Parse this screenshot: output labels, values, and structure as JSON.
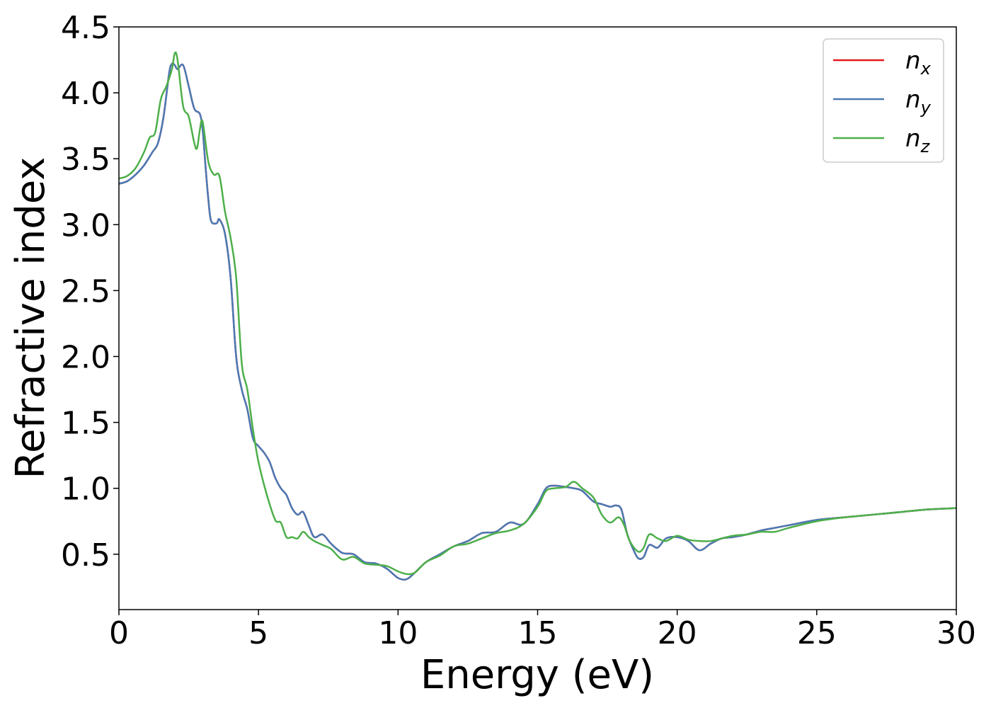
{
  "chart_data": {
    "type": "line",
    "xlabel": "Energy (eV)",
    "ylabel": "Refractive index",
    "xlim": [
      0,
      30
    ],
    "ylim": [
      0.08,
      4.5
    ],
    "xticks": [
      0,
      5,
      10,
      15,
      20,
      25,
      30
    ],
    "xtick_labels": [
      "0",
      "5",
      "10",
      "15",
      "20",
      "25",
      "30"
    ],
    "yticks": [
      0.5,
      1.0,
      1.5,
      2.0,
      2.5,
      3.0,
      3.5,
      4.0,
      4.5
    ],
    "ytick_labels": [
      "0.5",
      "1.0",
      "1.5",
      "2.0",
      "2.5",
      "3.0",
      "3.5",
      "4.0",
      "4.5"
    ],
    "grid": false,
    "legend_position": "top-right",
    "series": [
      {
        "name": "n_x",
        "legend_base": "n",
        "legend_sub": "x",
        "color": "#e41a1c",
        "x": [
          0,
          0.3,
          0.6,
          0.9,
          1.2,
          1.4,
          1.6,
          1.8,
          1.9,
          2.0,
          2.1,
          2.3,
          2.5,
          2.7,
          2.9,
          3.0,
          3.1,
          3.2,
          3.3,
          3.5,
          3.6,
          3.8,
          4.0,
          4.2,
          4.4,
          4.6,
          4.8,
          5.0,
          5.2,
          5.4,
          5.6,
          5.8,
          6.0,
          6.2,
          6.4,
          6.6,
          6.8,
          7.0,
          7.3,
          7.6,
          8.0,
          8.4,
          8.8,
          9.2,
          9.6,
          10.0,
          10.3,
          10.6,
          11.0,
          11.5,
          12.0,
          12.5,
          13.0,
          13.5,
          14.0,
          14.5,
          15.0,
          15.3,
          15.6,
          16.0,
          16.3,
          16.6,
          17.0,
          17.3,
          17.6,
          17.8,
          18.0,
          18.2,
          18.4,
          18.6,
          18.8,
          19.0,
          19.3,
          19.6,
          20.0,
          20.4,
          20.8,
          21.2,
          21.6,
          22.0,
          22.5,
          23.0,
          23.5,
          24.0,
          25.0,
          26.0,
          27.0,
          28.0,
          29.0,
          30.0
        ],
        "values": [
          3.31,
          3.33,
          3.38,
          3.45,
          3.55,
          3.62,
          3.82,
          4.15,
          4.22,
          4.21,
          4.18,
          4.21,
          4.05,
          3.88,
          3.84,
          3.72,
          3.45,
          3.2,
          3.03,
          3.01,
          3.04,
          2.93,
          2.6,
          2.0,
          1.75,
          1.6,
          1.38,
          1.32,
          1.27,
          1.2,
          1.08,
          1.0,
          0.95,
          0.85,
          0.8,
          0.82,
          0.72,
          0.63,
          0.65,
          0.58,
          0.51,
          0.5,
          0.44,
          0.43,
          0.39,
          0.32,
          0.31,
          0.36,
          0.44,
          0.5,
          0.56,
          0.6,
          0.66,
          0.67,
          0.74,
          0.73,
          0.88,
          1.0,
          1.02,
          1.01,
          1.0,
          0.98,
          0.9,
          0.88,
          0.86,
          0.87,
          0.84,
          0.66,
          0.55,
          0.47,
          0.48,
          0.57,
          0.55,
          0.62,
          0.63,
          0.6,
          0.53,
          0.58,
          0.62,
          0.63,
          0.65,
          0.68,
          0.7,
          0.72,
          0.76,
          0.78,
          0.8,
          0.82,
          0.84,
          0.85
        ]
      },
      {
        "name": "n_y",
        "legend_base": "n",
        "legend_sub": "y",
        "color": "#4a7ab5",
        "x": [
          0,
          0.3,
          0.6,
          0.9,
          1.2,
          1.4,
          1.6,
          1.8,
          1.9,
          2.0,
          2.1,
          2.3,
          2.5,
          2.7,
          2.9,
          3.0,
          3.1,
          3.2,
          3.3,
          3.5,
          3.6,
          3.8,
          4.0,
          4.2,
          4.4,
          4.6,
          4.8,
          5.0,
          5.2,
          5.4,
          5.6,
          5.8,
          6.0,
          6.2,
          6.4,
          6.6,
          6.8,
          7.0,
          7.3,
          7.6,
          8.0,
          8.4,
          8.8,
          9.2,
          9.6,
          10.0,
          10.3,
          10.6,
          11.0,
          11.5,
          12.0,
          12.5,
          13.0,
          13.5,
          14.0,
          14.5,
          15.0,
          15.3,
          15.6,
          16.0,
          16.3,
          16.6,
          17.0,
          17.3,
          17.6,
          17.8,
          18.0,
          18.2,
          18.4,
          18.6,
          18.8,
          19.0,
          19.3,
          19.6,
          20.0,
          20.4,
          20.8,
          21.2,
          21.6,
          22.0,
          22.5,
          23.0,
          23.5,
          24.0,
          25.0,
          26.0,
          27.0,
          28.0,
          29.0,
          30.0
        ],
        "values": [
          3.31,
          3.33,
          3.38,
          3.45,
          3.55,
          3.62,
          3.82,
          4.15,
          4.22,
          4.21,
          4.18,
          4.21,
          4.05,
          3.88,
          3.84,
          3.72,
          3.45,
          3.2,
          3.03,
          3.01,
          3.04,
          2.93,
          2.6,
          2.0,
          1.75,
          1.6,
          1.38,
          1.32,
          1.27,
          1.2,
          1.08,
          1.0,
          0.95,
          0.85,
          0.8,
          0.82,
          0.72,
          0.63,
          0.65,
          0.58,
          0.51,
          0.5,
          0.44,
          0.43,
          0.39,
          0.32,
          0.31,
          0.36,
          0.44,
          0.5,
          0.56,
          0.6,
          0.66,
          0.67,
          0.74,
          0.73,
          0.88,
          1.0,
          1.02,
          1.01,
          1.0,
          0.98,
          0.9,
          0.88,
          0.86,
          0.87,
          0.84,
          0.66,
          0.55,
          0.47,
          0.48,
          0.57,
          0.55,
          0.62,
          0.63,
          0.6,
          0.53,
          0.58,
          0.62,
          0.63,
          0.65,
          0.68,
          0.7,
          0.72,
          0.76,
          0.78,
          0.8,
          0.82,
          0.84,
          0.85
        ]
      },
      {
        "name": "n_z",
        "legend_base": "n",
        "legend_sub": "z",
        "color": "#4daf4a",
        "x": [
          0,
          0.3,
          0.6,
          0.9,
          1.1,
          1.3,
          1.5,
          1.7,
          1.9,
          2.0,
          2.1,
          2.3,
          2.5,
          2.7,
          2.8,
          2.9,
          3.0,
          3.2,
          3.4,
          3.6,
          3.8,
          4.0,
          4.2,
          4.4,
          4.6,
          4.8,
          5.0,
          5.3,
          5.6,
          5.8,
          6.0,
          6.2,
          6.4,
          6.6,
          6.8,
          7.0,
          7.3,
          7.6,
          8.0,
          8.4,
          8.8,
          9.2,
          9.6,
          10.0,
          10.3,
          10.6,
          11.0,
          11.5,
          12.0,
          12.5,
          13.0,
          13.5,
          14.0,
          14.5,
          15.0,
          15.3,
          15.6,
          16.0,
          16.3,
          16.6,
          17.0,
          17.3,
          17.6,
          17.9,
          18.1,
          18.3,
          18.6,
          18.8,
          19.0,
          19.3,
          19.6,
          20.0,
          20.4,
          20.8,
          21.2,
          21.6,
          22.0,
          22.5,
          23.0,
          23.5,
          24.0,
          25.0,
          26.0,
          27.0,
          28.0,
          29.0,
          30.0
        ],
        "values": [
          3.35,
          3.37,
          3.43,
          3.55,
          3.66,
          3.7,
          3.95,
          4.05,
          4.18,
          4.3,
          4.25,
          3.9,
          3.82,
          3.62,
          3.58,
          3.72,
          3.78,
          3.48,
          3.38,
          3.37,
          3.1,
          2.9,
          2.6,
          1.95,
          1.75,
          1.45,
          1.2,
          0.95,
          0.76,
          0.74,
          0.63,
          0.63,
          0.62,
          0.67,
          0.63,
          0.6,
          0.57,
          0.54,
          0.46,
          0.48,
          0.43,
          0.42,
          0.41,
          0.37,
          0.35,
          0.36,
          0.44,
          0.49,
          0.56,
          0.58,
          0.62,
          0.66,
          0.68,
          0.73,
          0.86,
          0.98,
          1.0,
          1.01,
          1.05,
          1.0,
          0.93,
          0.8,
          0.74,
          0.78,
          0.72,
          0.6,
          0.52,
          0.55,
          0.65,
          0.62,
          0.6,
          0.64,
          0.61,
          0.6,
          0.6,
          0.62,
          0.64,
          0.65,
          0.67,
          0.67,
          0.7,
          0.75,
          0.78,
          0.8,
          0.82,
          0.84,
          0.85
        ]
      }
    ]
  }
}
